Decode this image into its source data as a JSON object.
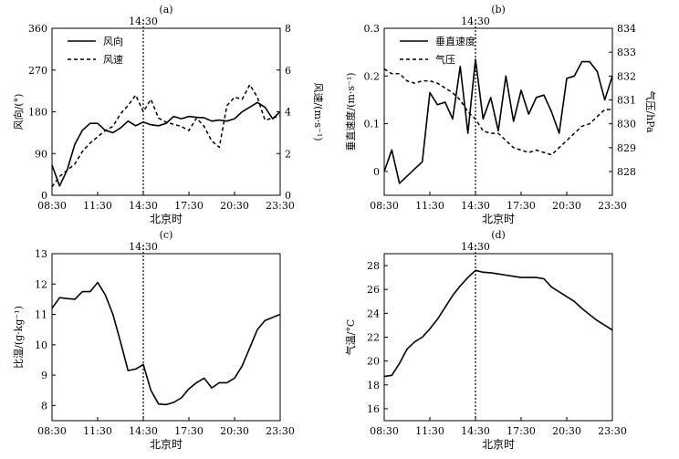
{
  "chart_data": [
    {
      "panel": "(a)",
      "type": "line",
      "marker_label": "14:30",
      "xlabel": "北京时",
      "ylabel": "风向/(°)",
      "ylabel_right": "风速/(m·s⁻¹)",
      "xticks": [
        "08:30",
        "11:30",
        "14:30",
        "17:30",
        "20:30",
        "23:30"
      ],
      "yticks": [
        "0",
        "90",
        "180",
        "270",
        "360"
      ],
      "yticks_right": [
        "0",
        "2",
        "4",
        "6",
        "8"
      ],
      "ylim": [
        0,
        360
      ],
      "ylim_right": [
        0,
        8
      ],
      "legend_position": "top-left",
      "x": [
        0,
        0.5,
        1,
        1.5,
        2,
        2.5,
        3,
        3.5,
        4,
        4.5,
        5,
        5.5,
        6,
        6.5,
        7,
        7.5,
        8,
        8.5,
        9,
        9.5,
        10,
        10.5,
        11,
        11.5,
        12,
        12.5,
        13,
        13.5,
        14,
        14.5,
        15
      ],
      "series": [
        {
          "name": "风向",
          "style": "solid",
          "axis": "left",
          "values": [
            65,
            20,
            55,
            110,
            140,
            155,
            155,
            140,
            135,
            145,
            160,
            150,
            158,
            152,
            150,
            155,
            170,
            165,
            170,
            168,
            167,
            160,
            162,
            160,
            165,
            180,
            190,
            200,
            190,
            165,
            180
          ]
        },
        {
          "name": "风速",
          "style": "dashed",
          "axis": "right",
          "values": [
            0.4,
            0.9,
            1.2,
            1.5,
            2.1,
            2.5,
            2.8,
            3.1,
            3.3,
            3.9,
            4.3,
            4.8,
            4.0,
            4.6,
            3.7,
            3.5,
            3.4,
            3.3,
            3.1,
            3.7,
            3.3,
            2.6,
            2.3,
            4.3,
            4.7,
            4.6,
            5.3,
            4.7,
            3.6,
            3.7,
            3.8
          ]
        }
      ]
    },
    {
      "panel": "(b)",
      "type": "line",
      "marker_label": "14:30",
      "xlabel": "北京时",
      "ylabel": "垂直速度/(m·s⁻¹)",
      "ylabel_right": "气压/hPa",
      "xticks": [
        "08:30",
        "11:30",
        "14:30",
        "17:30",
        "20:30",
        "23:30"
      ],
      "yticks": [
        "0",
        "0.1",
        "0.2",
        "0.3"
      ],
      "yticks_right": [
        "828",
        "829",
        "830",
        "831",
        "832",
        "833",
        "834"
      ],
      "ylim": [
        -0.05,
        0.3
      ],
      "ylim_right": [
        828,
        834
      ],
      "legend_position": "top-left",
      "x": [
        0,
        0.5,
        1,
        1.5,
        2,
        2.5,
        3,
        3.5,
        4,
        4.5,
        5,
        5.5,
        6,
        6.5,
        7,
        7.5,
        8,
        8.5,
        9,
        9.5,
        10,
        10.5,
        11,
        11.5,
        12,
        12.5,
        13,
        13.5,
        14,
        14.5,
        15
      ],
      "series": [
        {
          "name": "垂直速度",
          "style": "solid",
          "axis": "left",
          "values": [
            0.0,
            0.045,
            -0.025,
            -0.01,
            0.005,
            0.02,
            0.165,
            0.14,
            0.145,
            0.11,
            0.22,
            0.08,
            0.235,
            0.11,
            0.155,
            0.085,
            0.2,
            0.105,
            0.17,
            0.12,
            0.155,
            0.16,
            0.125,
            0.08,
            0.195,
            0.2,
            0.23,
            0.23,
            0.21,
            0.15,
            0.2
          ]
        },
        {
          "name": "气压",
          "style": "dashed",
          "axis": "right",
          "values": [
            832.3,
            832.1,
            832.1,
            831.8,
            831.7,
            831.8,
            831.8,
            831.7,
            831.5,
            831.3,
            831.0,
            830.5,
            830.2,
            829.7,
            829.6,
            829.6,
            829.3,
            829.0,
            828.9,
            828.8,
            828.9,
            828.8,
            828.7,
            829.0,
            829.3,
            829.6,
            829.9,
            830.0,
            830.3,
            830.6,
            830.6
          ]
        }
      ]
    },
    {
      "panel": "(c)",
      "type": "line",
      "marker_label": "14:30",
      "xlabel": "北京时",
      "ylabel": "比湿/(g·kg⁻¹)",
      "xticks": [
        "08:30",
        "11:30",
        "14:30",
        "17:30",
        "20:30",
        "23:30"
      ],
      "yticks": [
        "8",
        "9",
        "10",
        "11",
        "12",
        "13"
      ],
      "ylim": [
        7.5,
        13
      ],
      "x": [
        0,
        0.5,
        1,
        1.5,
        2,
        2.5,
        3,
        3.5,
        4,
        4.5,
        5,
        5.5,
        6,
        6.5,
        7,
        7.5,
        8,
        8.5,
        9,
        9.5,
        10,
        10.5,
        11,
        11.5,
        12,
        12.5,
        13,
        13.5,
        14,
        14.5,
        15
      ],
      "series": [
        {
          "name": "",
          "style": "solid",
          "axis": "left",
          "values": [
            11.2,
            11.55,
            11.52,
            11.5,
            11.75,
            11.75,
            12.05,
            11.65,
            11.0,
            10.1,
            9.15,
            9.2,
            9.35,
            8.5,
            8.05,
            8.03,
            8.1,
            8.25,
            8.55,
            8.75,
            8.9,
            8.58,
            8.75,
            8.75,
            8.9,
            9.3,
            9.9,
            10.5,
            10.8,
            10.9,
            11.0
          ]
        }
      ]
    },
    {
      "panel": "(d)",
      "type": "line",
      "marker_label": "14:30",
      "xlabel": "北京时",
      "ylabel": "气温/°C",
      "xticks": [
        "08:30",
        "11:30",
        "14:30",
        "17:30",
        "20:30",
        "23:30"
      ],
      "yticks": [
        "16",
        "18",
        "20",
        "22",
        "24",
        "26",
        "28"
      ],
      "ylim": [
        15,
        29
      ],
      "x": [
        0,
        0.5,
        1,
        1.5,
        2,
        2.5,
        3,
        3.5,
        4,
        4.5,
        5,
        5.5,
        6,
        6.5,
        7,
        7.5,
        8,
        8.5,
        9,
        9.5,
        10,
        10.5,
        11,
        11.5,
        12,
        12.5,
        13,
        13.5,
        14,
        14.5,
        15
      ],
      "series": [
        {
          "name": "",
          "style": "solid",
          "axis": "left",
          "values": [
            18.7,
            18.8,
            19.8,
            21.0,
            21.6,
            22.0,
            22.7,
            23.5,
            24.5,
            25.5,
            26.3,
            27.0,
            27.6,
            27.45,
            27.4,
            27.3,
            27.2,
            27.1,
            27.0,
            27.0,
            27.0,
            26.9,
            26.2,
            25.8,
            25.4,
            25.0,
            24.4,
            23.9,
            23.4,
            23.0,
            22.6
          ]
        }
      ]
    }
  ]
}
